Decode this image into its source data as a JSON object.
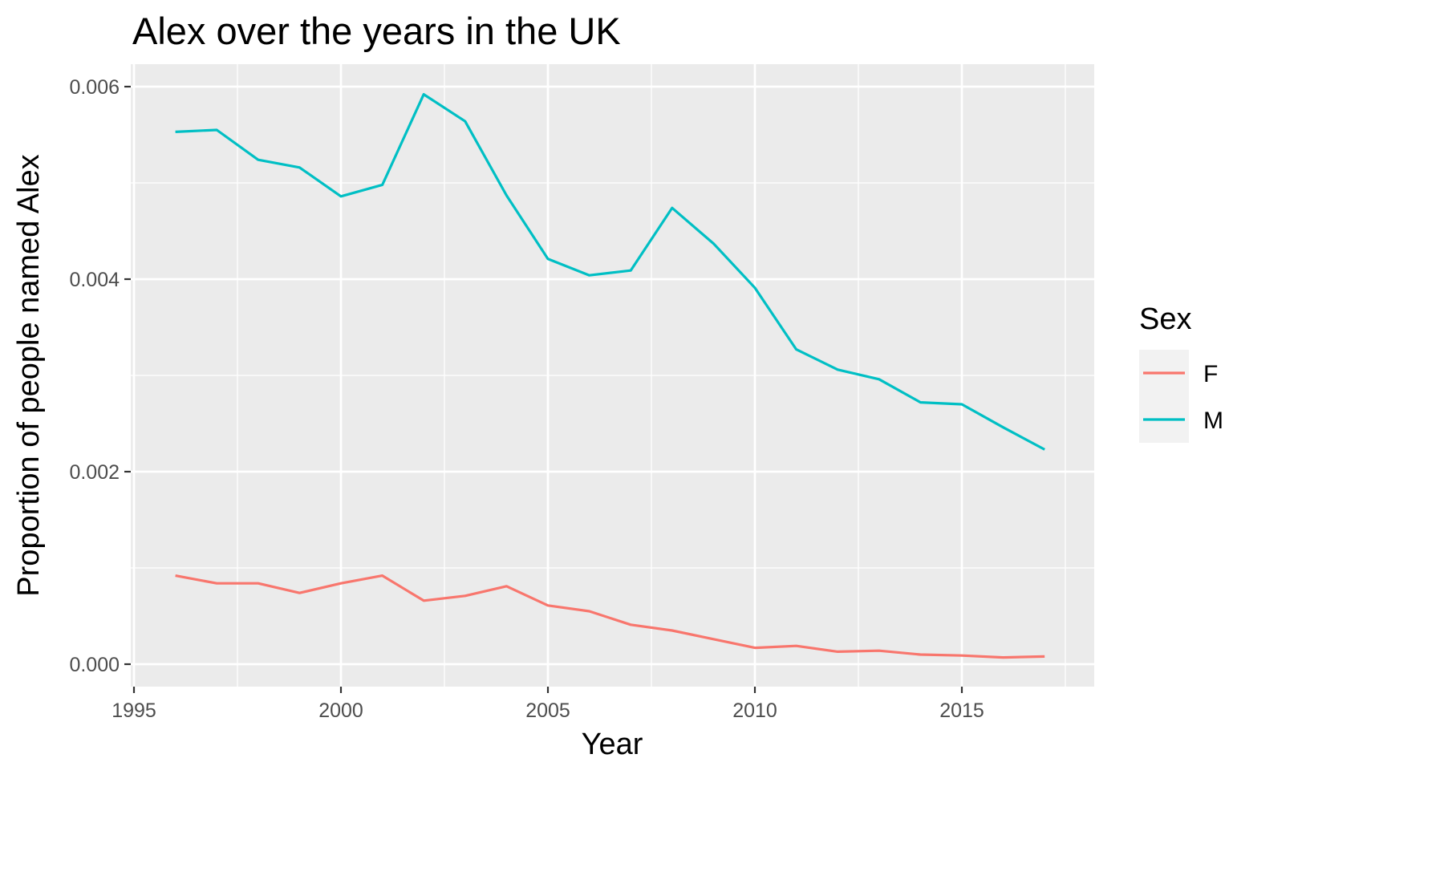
{
  "chart_data": {
    "type": "line",
    "title": "Alex over the years in the UK",
    "xlabel": "Year",
    "ylabel": "Proportion of people named Alex",
    "xlim": [
      1995,
      2017.5
    ],
    "ylim": [
      0.0,
      0.006
    ],
    "x_ticks": [
      1995,
      2000,
      2005,
      2010,
      2015
    ],
    "x_tick_labels": [
      "1995",
      "2000",
      "2005",
      "2010",
      "2015"
    ],
    "y_ticks": [
      0.0,
      0.002,
      0.004,
      0.006
    ],
    "y_tick_labels": [
      "0.000",
      "0.002",
      "0.004",
      "0.006"
    ],
    "grid": true,
    "legend": {
      "title": "Sex",
      "position": "right"
    },
    "x": [
      1996,
      1997,
      1998,
      1999,
      2000,
      2001,
      2002,
      2003,
      2004,
      2005,
      2006,
      2007,
      2008,
      2009,
      2010,
      2011,
      2012,
      2013,
      2014,
      2015,
      2016,
      2017
    ],
    "series": [
      {
        "name": "F",
        "color": "#F8766D",
        "values": [
          0.00092,
          0.00084,
          0.00084,
          0.00074,
          0.00084,
          0.00092,
          0.00066,
          0.00071,
          0.00081,
          0.00061,
          0.00055,
          0.00041,
          0.00035,
          0.00026,
          0.00017,
          0.00019,
          0.00013,
          0.00014,
          0.0001,
          9e-05,
          7e-05,
          8e-05
        ]
      },
      {
        "name": "M",
        "color": "#00BFC4",
        "values": [
          0.00553,
          0.00555,
          0.00524,
          0.00516,
          0.00486,
          0.00498,
          0.00592,
          0.00564,
          0.00487,
          0.00421,
          0.00404,
          0.00409,
          0.00474,
          0.00437,
          0.00391,
          0.00327,
          0.00306,
          0.00296,
          0.00272,
          0.0027,
          0.00246,
          0.00223
        ]
      }
    ]
  }
}
